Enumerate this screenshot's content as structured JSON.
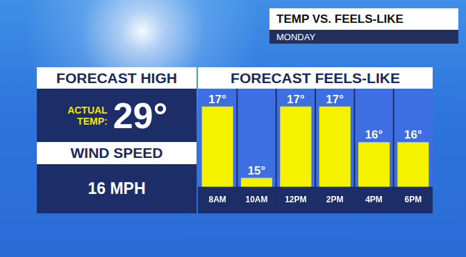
{
  "header": {
    "title": "TEMP VS. FEELS-LIKE",
    "subtitle": "MONDAY"
  },
  "summary": {
    "title": "FORECAST HIGH",
    "temp_label": "ACTUAL TEMP:",
    "temp": "29°",
    "wind_title": "WIND SPEED",
    "wind": "16 MPH"
  },
  "chart_data": {
    "type": "bar",
    "title": "FORECAST FEELS-LIKE",
    "categories": [
      "8AM",
      "10AM",
      "12PM",
      "2PM",
      "4PM",
      "6PM"
    ],
    "values": [
      17,
      15,
      17,
      17,
      16,
      16
    ],
    "value_labels": [
      "17°",
      "15°",
      "17°",
      "17°",
      "16°",
      "16°"
    ],
    "color": "#f5f200",
    "ylim": [
      14.75,
      17.5
    ],
    "grid": false,
    "data_labels": true,
    "tick_labels": "x"
  }
}
